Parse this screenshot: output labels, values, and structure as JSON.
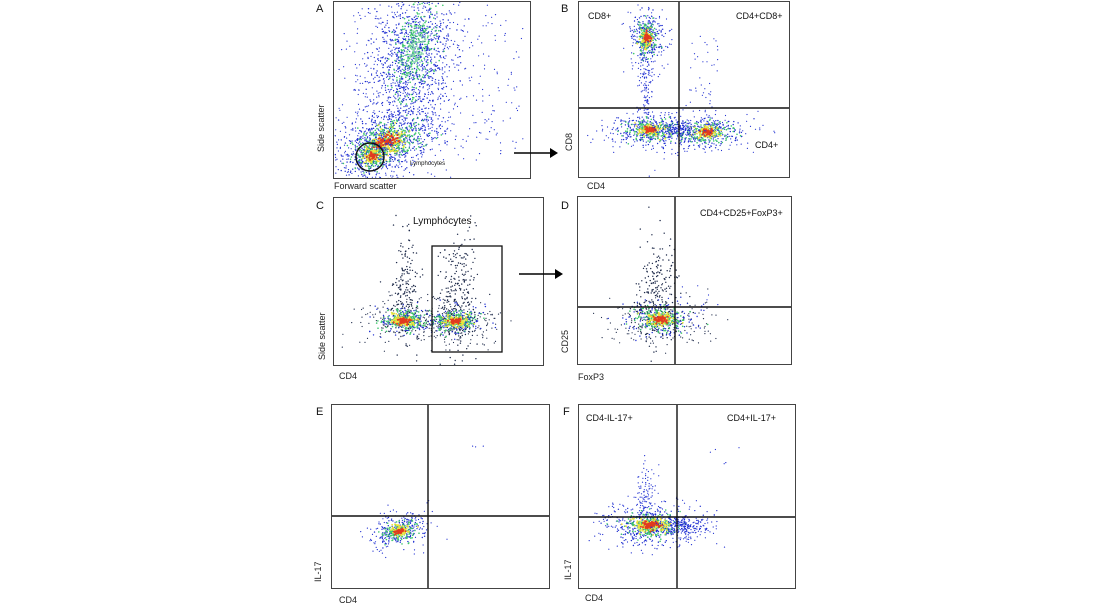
{
  "panels": {
    "a": {
      "letter": "A",
      "xlabel": "Forward scatter",
      "ylabel": "Side scatter",
      "gate_label": "Lymphocytes"
    },
    "b": {
      "letter": "B",
      "xlabel": "CD4",
      "ylabel": "CD8",
      "q_ul": "CD8+",
      "q_ur": "CD4+CD8+",
      "q_lr": "CD4+"
    },
    "c": {
      "letter": "C",
      "xlabel": "CD4",
      "ylabel": "Side scatter",
      "title": "Lymphocytes"
    },
    "d": {
      "letter": "D",
      "xlabel": "FoxP3",
      "ylabel": "CD25",
      "q_ur": "CD4+CD25+FoxP3+"
    },
    "e": {
      "letter": "E",
      "xlabel": "CD4",
      "ylabel": "IL-17"
    },
    "f": {
      "letter": "F",
      "xlabel": "CD4",
      "ylabel": "IL-17",
      "q_ul": "CD4-IL-17+",
      "q_ur": "CD4+IL-17+"
    }
  },
  "colors": {
    "density_low": "#1f2fd1",
    "density_mid": "#3cc76a",
    "density_high": "#f0e33a",
    "density_peak": "#e23b1f",
    "sparse": "#1e2a4a"
  }
}
